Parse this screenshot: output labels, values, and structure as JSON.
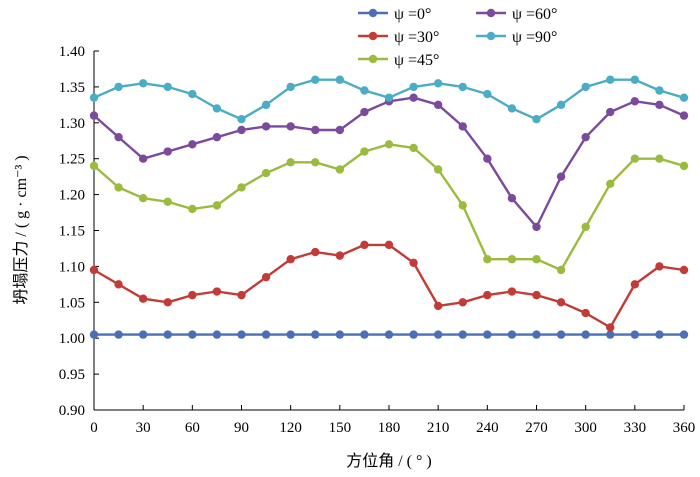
{
  "chart_data": {
    "type": "line",
    "title": "",
    "xlabel": "方位角 / ( ° )",
    "ylabel": "坍塌压力 / ( g · cm⁻³ )",
    "xlim": [
      0,
      360
    ],
    "ylim": [
      0.9,
      1.4
    ],
    "x": [
      0,
      15,
      30,
      45,
      60,
      75,
      90,
      105,
      120,
      135,
      150,
      165,
      180,
      195,
      210,
      225,
      240,
      255,
      270,
      285,
      300,
      315,
      330,
      345,
      360
    ],
    "x_ticks": [
      "0",
      "30",
      "60",
      "90",
      "120",
      "150",
      "180",
      "210",
      "240",
      "270",
      "300",
      "330",
      "360"
    ],
    "y_ticks": [
      "0.90",
      "0.95",
      "1.00",
      "1.05",
      "1.10",
      "1.15",
      "1.20",
      "1.25",
      "1.30",
      "1.35",
      "1.40"
    ],
    "legend_position": "top",
    "series": [
      {
        "name": "ψ =0°",
        "color": "#4a6fb5",
        "values": [
          1.005,
          1.005,
          1.005,
          1.005,
          1.005,
          1.005,
          1.005,
          1.005,
          1.005,
          1.005,
          1.005,
          1.005,
          1.005,
          1.005,
          1.005,
          1.005,
          1.005,
          1.005,
          1.005,
          1.005,
          1.005,
          1.005,
          1.005,
          1.005,
          1.005
        ]
      },
      {
        "name": "ψ =30°",
        "color": "#c23b36",
        "values": [
          1.095,
          1.075,
          1.055,
          1.05,
          1.06,
          1.065,
          1.06,
          1.085,
          1.11,
          1.12,
          1.115,
          1.13,
          1.13,
          1.105,
          1.045,
          1.05,
          1.06,
          1.065,
          1.06,
          1.05,
          1.035,
          1.015,
          1.075,
          1.1,
          1.095
        ]
      },
      {
        "name": "ψ =45°",
        "color": "#9bbb3f",
        "values": [
          1.24,
          1.21,
          1.195,
          1.19,
          1.18,
          1.185,
          1.21,
          1.23,
          1.245,
          1.245,
          1.235,
          1.26,
          1.27,
          1.265,
          1.235,
          1.185,
          1.11,
          1.11,
          1.11,
          1.095,
          1.155,
          1.215,
          1.25,
          1.25,
          1.24
        ]
      },
      {
        "name": "ψ =60°",
        "color": "#7b4a9c",
        "values": [
          1.31,
          1.28,
          1.25,
          1.26,
          1.27,
          1.28,
          1.29,
          1.295,
          1.295,
          1.29,
          1.29,
          1.315,
          1.33,
          1.335,
          1.325,
          1.295,
          1.25,
          1.195,
          1.155,
          1.225,
          1.28,
          1.315,
          1.33,
          1.325,
          1.31
        ]
      },
      {
        "name": "ψ =90°",
        "color": "#4bacc6",
        "values": [
          1.335,
          1.35,
          1.355,
          1.35,
          1.34,
          1.32,
          1.305,
          1.325,
          1.35,
          1.36,
          1.36,
          1.345,
          1.335,
          1.35,
          1.355,
          1.35,
          1.34,
          1.32,
          1.305,
          1.325,
          1.35,
          1.36,
          1.36,
          1.345,
          1.335
        ]
      }
    ]
  }
}
